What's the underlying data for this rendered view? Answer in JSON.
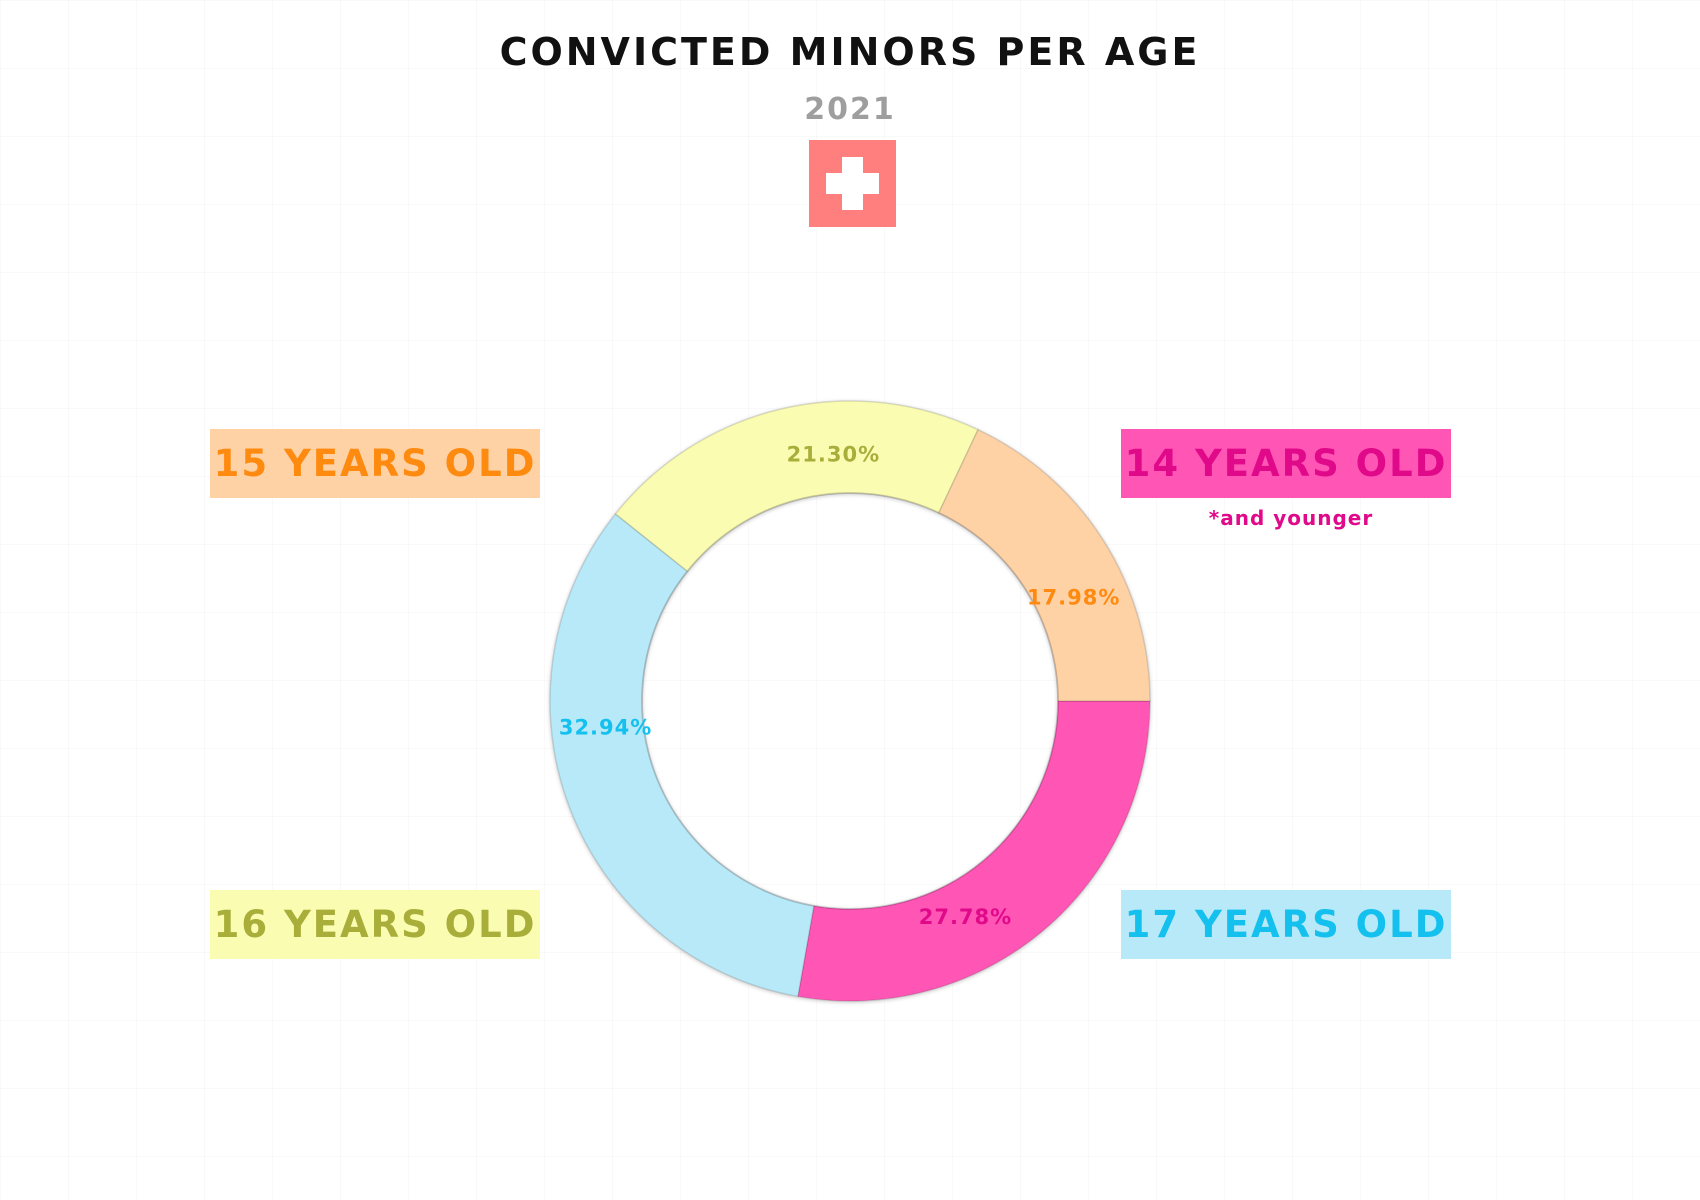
{
  "chart_data": {
    "type": "donut",
    "title": "CONVICTED MINORS PER AGE",
    "subtitle": "2021",
    "categories": [
      "14 YEARS OLD",
      "17 YEARS OLD",
      "16 YEARS OLD",
      "15 YEARS OLD"
    ],
    "values": [
      27.78,
      32.94,
      21.3,
      17.98
    ],
    "value_labels": [
      "27.78%",
      "32.94%",
      "21.30%",
      "17.98%"
    ],
    "unit": "%",
    "colors": [
      "#ff56b6",
      "#b8e9f8",
      "#fafcb2",
      "#ffd2a6"
    ],
    "label_colors": [
      "#e0098a",
      "#14c0ee",
      "#a9ae3a",
      "#ff8a10"
    ],
    "start_angle_deg": 0,
    "direction": "clockwise",
    "annotations": [
      {
        "category": "14 YEARS OLD",
        "text": "*and younger"
      }
    ],
    "legend_placement": "four corners around donut"
  },
  "flag": {
    "icon": "swiss-flag-icon",
    "color": "#ff7f7f",
    "cross_color": "#ffffff"
  }
}
